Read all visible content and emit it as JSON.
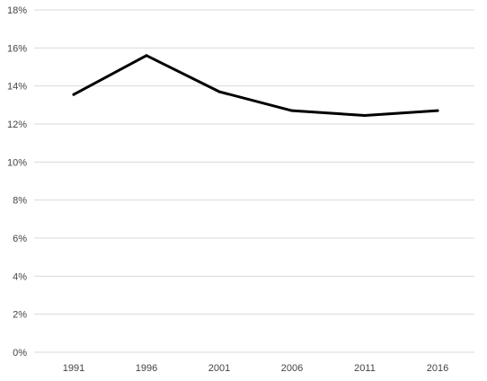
{
  "chart_data": {
    "type": "line",
    "title": "",
    "xlabel": "",
    "ylabel": "",
    "x": [
      "1991",
      "1996",
      "2001",
      "2006",
      "2011",
      "2016"
    ],
    "series": [
      {
        "values": [
          13.55,
          15.6,
          13.7,
          12.7,
          12.45,
          12.7
        ],
        "color": "#000000"
      }
    ],
    "ylim": [
      0,
      18
    ],
    "y_ticks": [
      0,
      2,
      4,
      6,
      8,
      10,
      12,
      14,
      16,
      18
    ],
    "y_tick_labels": [
      "0%",
      "2%",
      "4%",
      "6%",
      "8%",
      "10%",
      "12%",
      "14%",
      "16%",
      "18%"
    ],
    "grid": true,
    "legend": "none"
  }
}
